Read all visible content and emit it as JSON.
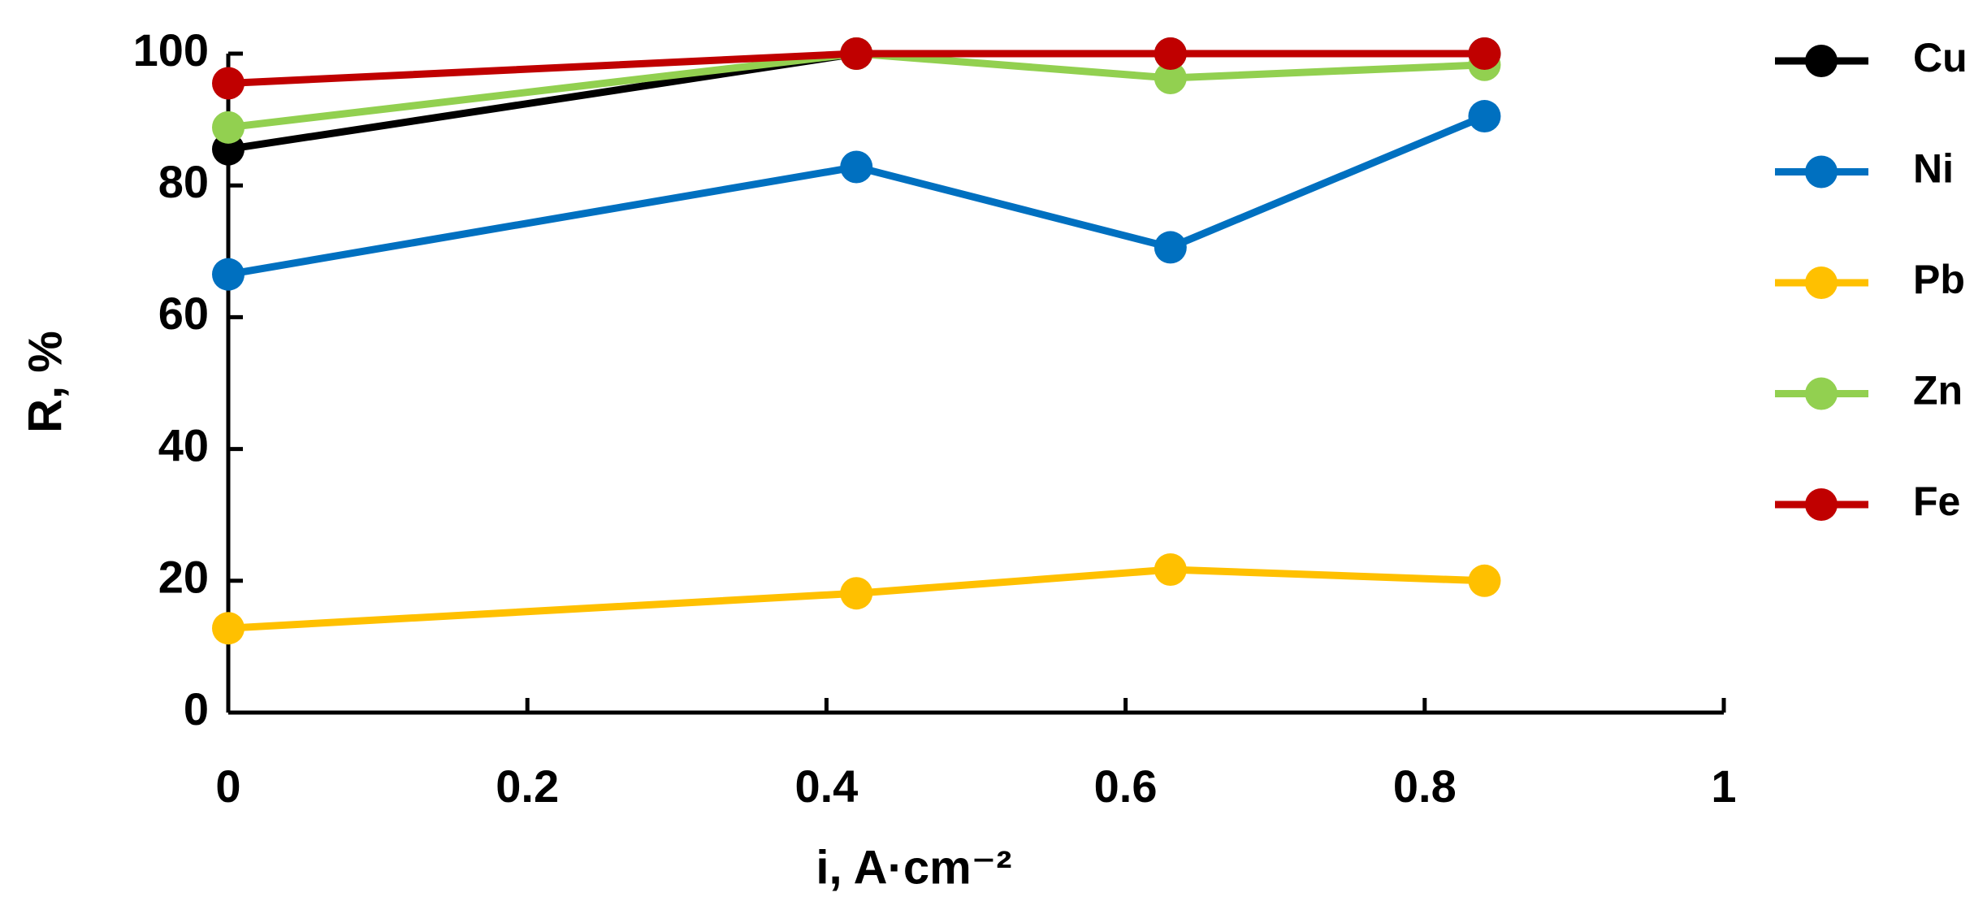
{
  "chart_data": {
    "type": "line",
    "x_label": "i, A·cm⁻²",
    "y_label": "R, %",
    "x": [
      0,
      0.42,
      0.63,
      0.84
    ],
    "series": [
      {
        "name": "Cu",
        "color": "#000000",
        "values": [
          85.5,
          100,
          100,
          100
        ]
      },
      {
        "name": "Ni",
        "color": "#0070c0",
        "values": [
          66.5,
          82.8,
          70.6,
          90.5
        ]
      },
      {
        "name": "Pb",
        "color": "#ffc000",
        "values": [
          12.8,
          18.1,
          21.7,
          20.0
        ]
      },
      {
        "name": "Zn",
        "color": "#92d050",
        "values": [
          88.8,
          100,
          96.3,
          98.3
        ]
      },
      {
        "name": "Fe",
        "color": "#c00000",
        "values": [
          95.5,
          100,
          100,
          100
        ]
      }
    ],
    "xlim": [
      0,
      1
    ],
    "xticks": [
      0,
      0.2,
      0.4,
      0.6,
      0.8,
      1
    ],
    "ylim": [
      0,
      100
    ],
    "yticks": [
      0,
      20,
      40,
      60,
      80,
      100
    ],
    "legend": "right"
  }
}
